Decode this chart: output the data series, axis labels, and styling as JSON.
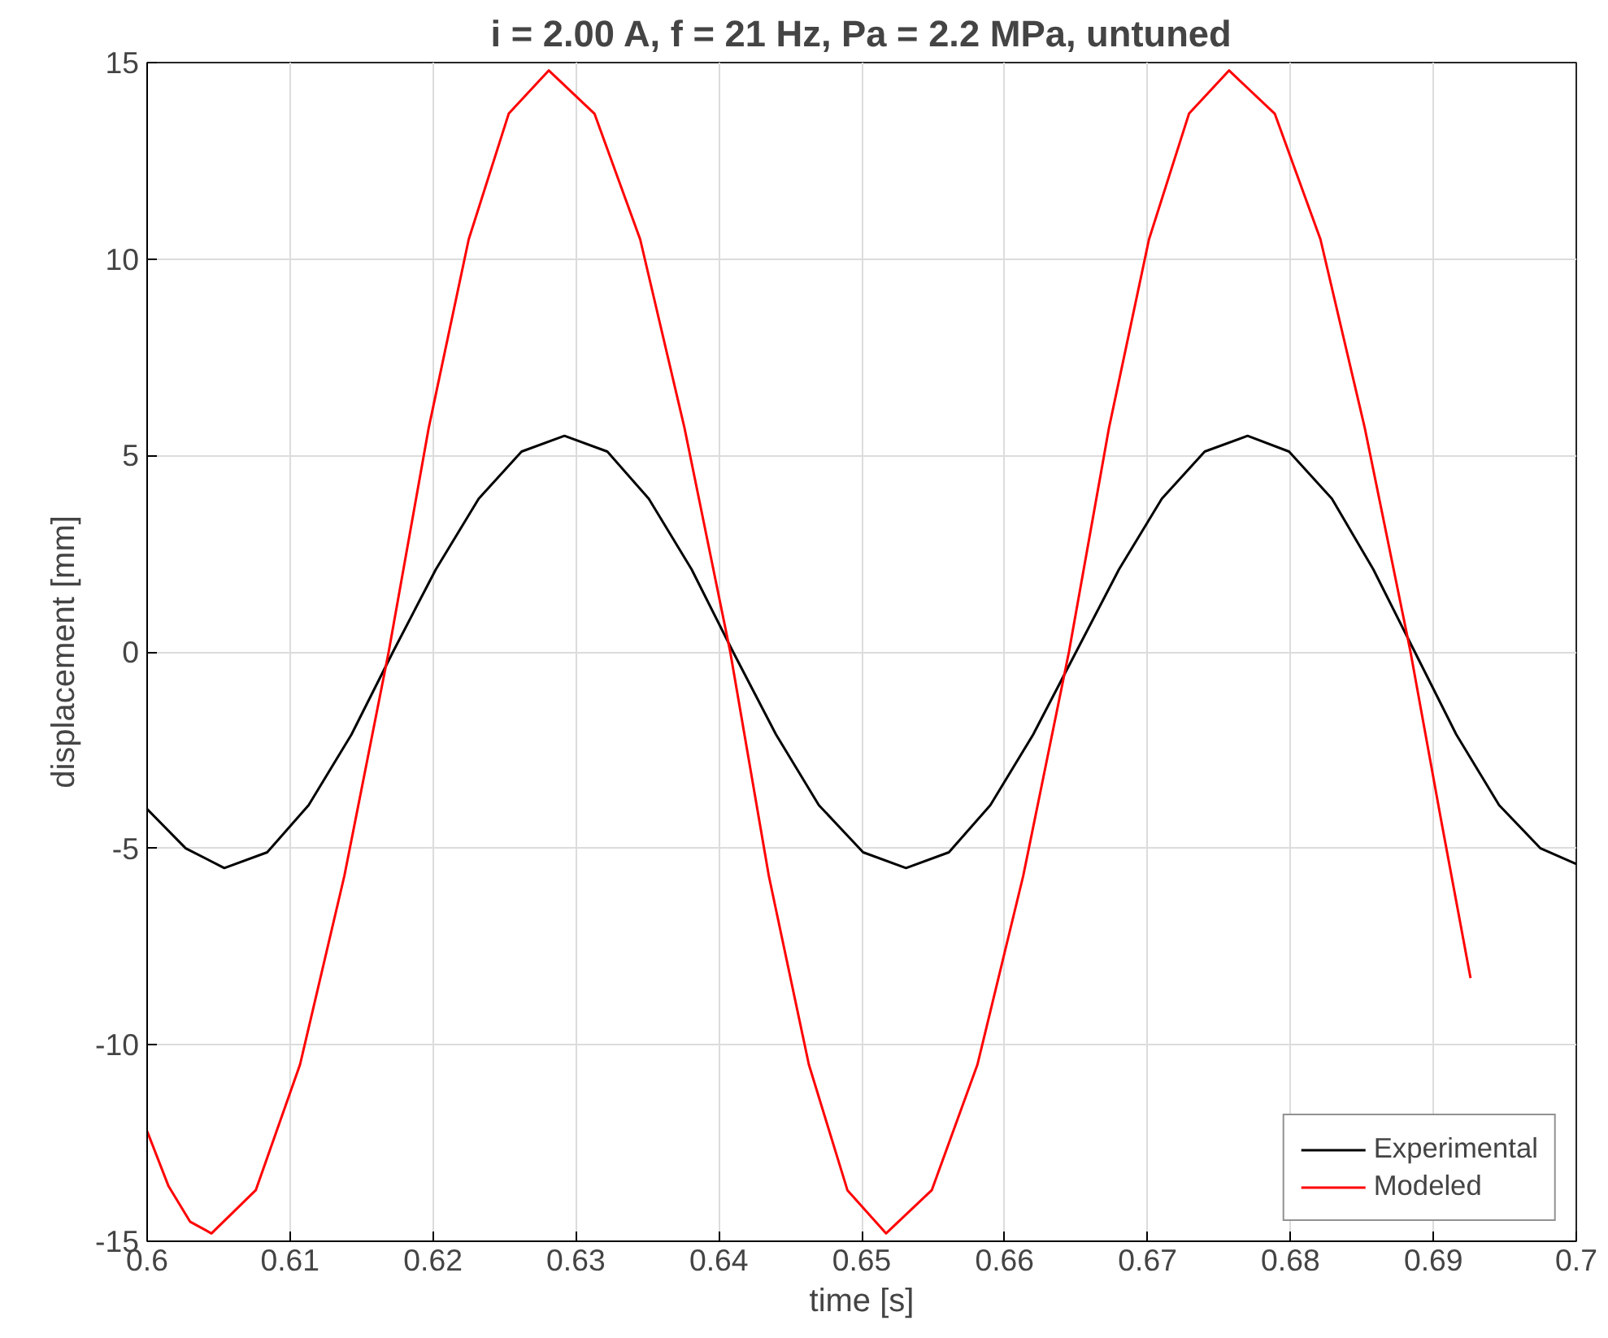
{
  "chart_data": {
    "type": "line",
    "title": "i = 2.00 A, f = 21 Hz, Pa = 2.2 MPa, untuned",
    "xlabel": "time [s]",
    "ylabel": "displacement [mm]",
    "xlim": [
      0.6,
      0.7
    ],
    "xticks": [
      0.6,
      0.61,
      0.62,
      0.63,
      0.64,
      0.65,
      0.66,
      0.67,
      0.68,
      0.69,
      0.7
    ],
    "ylim": [
      -15,
      15
    ],
    "yticks": [
      -15,
      -10,
      -5,
      0,
      5,
      10,
      15
    ],
    "grid": true,
    "legend": "bottom right",
    "marker": "none",
    "line_style": "solid",
    "series": [
      {
        "name": "Experimental",
        "color": "#000000",
        "x": [
          0.6,
          0.6027,
          0.6054,
          0.6084,
          0.6113,
          0.6143,
          0.6172,
          0.6202,
          0.6232,
          0.6262,
          0.6292,
          0.6322,
          0.6351,
          0.6381,
          0.641,
          0.644,
          0.647,
          0.6501,
          0.6531,
          0.6561,
          0.659,
          0.662,
          0.665,
          0.668,
          0.671,
          0.674,
          0.677,
          0.6799,
          0.6829,
          0.6858,
          0.6887,
          0.6916,
          0.6946,
          0.6975,
          0.7
        ],
        "values": [
          -4.0,
          -5.0,
          -5.5,
          -5.1,
          -3.9,
          -2.1,
          0,
          2.1,
          3.9,
          5.1,
          5.5,
          5.1,
          3.9,
          2.1,
          0,
          -2.1,
          -3.9,
          -5.1,
          -5.5,
          -5.1,
          -3.9,
          -2.1,
          0,
          2.1,
          3.9,
          5.1,
          5.5,
          5.1,
          3.9,
          2.1,
          0,
          -2.1,
          -3.9,
          -5.0,
          -5.4
        ]
      },
      {
        "name": "Modeled",
        "color": "#ff0000",
        "x": [
          0.6,
          0.6015,
          0.603,
          0.6045,
          0.6076,
          0.6107,
          0.6138,
          0.6169,
          0.6197,
          0.6225,
          0.6253,
          0.6281,
          0.6313,
          0.6345,
          0.6376,
          0.6408,
          0.6435,
          0.6463,
          0.649,
          0.6517,
          0.6549,
          0.6581,
          0.6613,
          0.6645,
          0.6673,
          0.6701,
          0.6729,
          0.6757,
          0.6789,
          0.6821,
          0.6852,
          0.6884,
          0.6905,
          0.6926
        ],
        "values": [
          -12.2,
          -13.6,
          -14.5,
          -14.8,
          -13.7,
          -10.5,
          -5.7,
          0,
          5.7,
          10.5,
          13.7,
          14.8,
          13.7,
          10.5,
          5.7,
          0,
          -5.7,
          -10.5,
          -13.7,
          -14.8,
          -13.7,
          -10.5,
          -5.7,
          0,
          5.7,
          10.5,
          13.7,
          14.8,
          13.7,
          10.5,
          5.7,
          0,
          -4.2,
          -8.3
        ]
      }
    ]
  }
}
